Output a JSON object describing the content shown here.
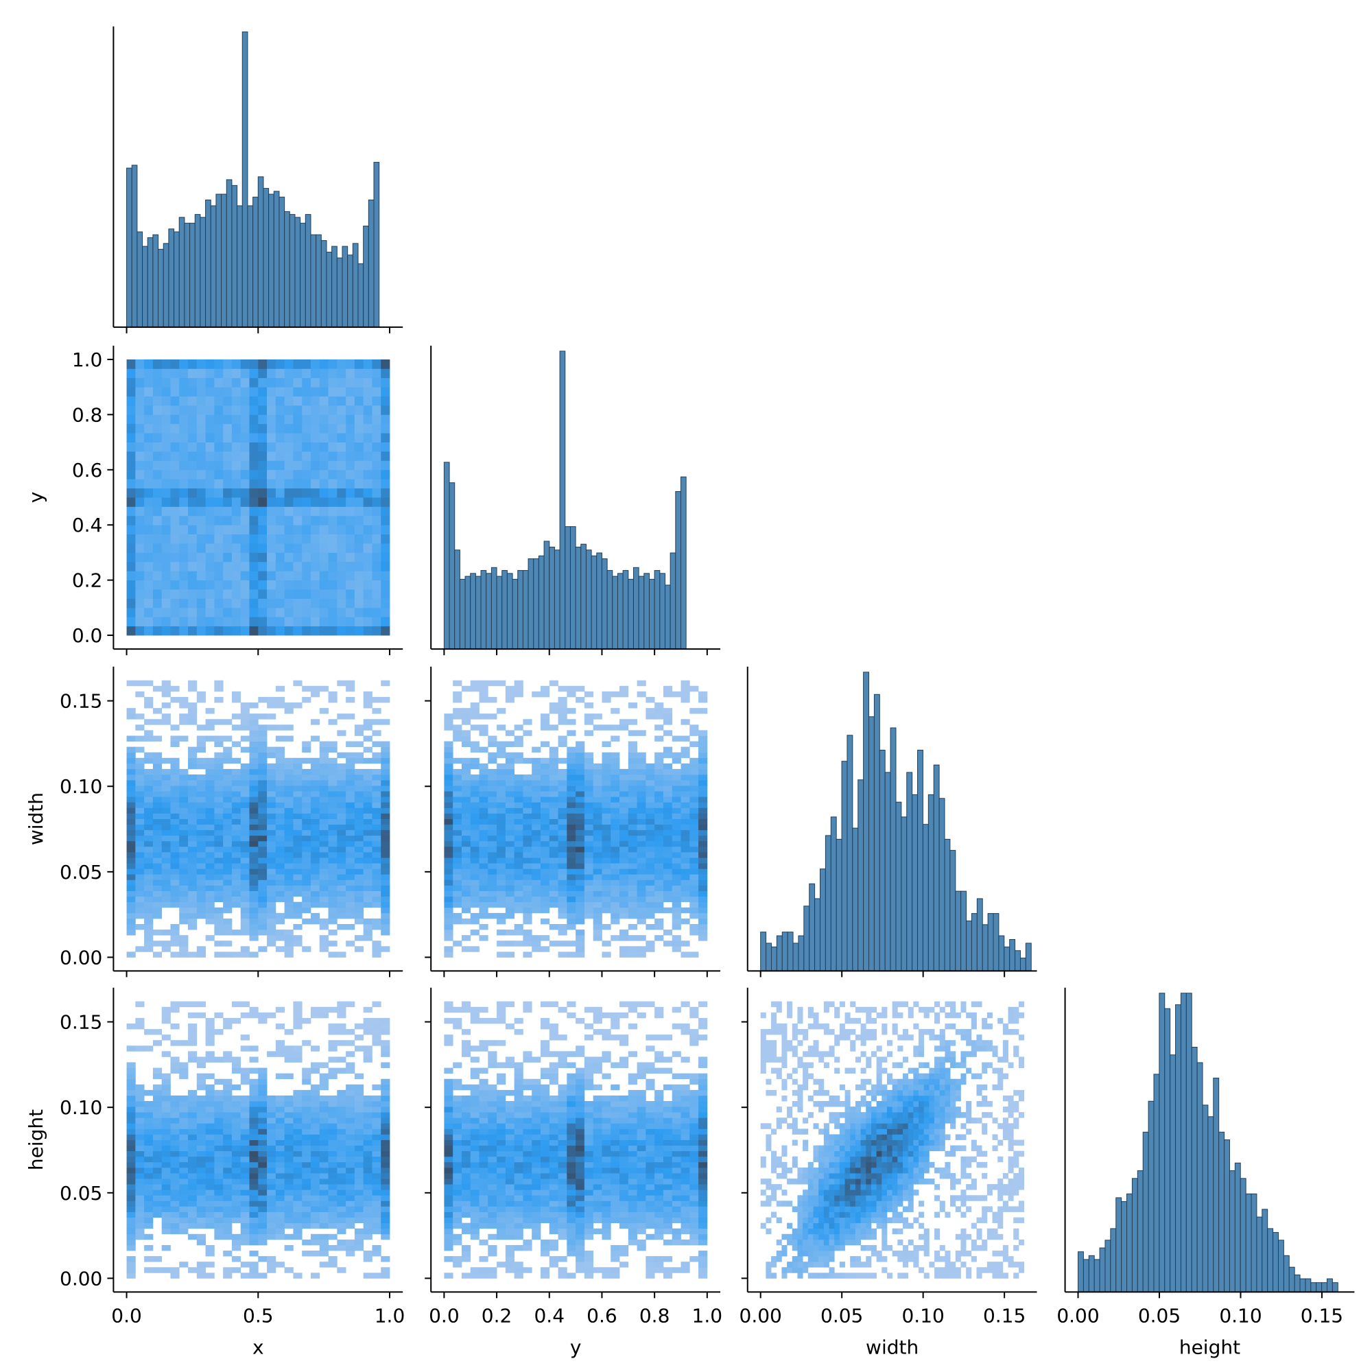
{
  "chart_data": {
    "type": "pairplot",
    "variables": [
      "x",
      "y",
      "width",
      "height"
    ],
    "corner": true,
    "diagonal": "histogram",
    "off_diagonal": "2d-histogram",
    "colors": {
      "bar_fill": "#4f87b4",
      "bar_edge": "#1f3f5a",
      "heat_low": "#a9c8ef",
      "heat_mid": "#2f9cf0",
      "heat_high": "#37506e"
    },
    "axes": {
      "x": {
        "label": "x",
        "range": [
          -0.05,
          1.05
        ],
        "ticks": [
          0.0,
          0.5,
          1.0
        ],
        "tick_labels": [
          "0.0",
          "0.5",
          "1.0"
        ]
      },
      "y": {
        "label": "y",
        "range": [
          -0.05,
          1.05
        ],
        "ticks": [
          0.0,
          0.2,
          0.4,
          0.6,
          0.8,
          1.0
        ],
        "tick_labels": [
          "0.0",
          "0.2",
          "0.4",
          "0.6",
          "0.8",
          "1.0"
        ],
        "x_tick_labels": [
          "0.0",
          "0.5",
          "1.0"
        ]
      },
      "width": {
        "label": "width",
        "range": [
          -0.008,
          0.17
        ],
        "ticks": [
          0.0,
          0.05,
          0.1,
          0.15
        ],
        "tick_labels": [
          "0.00",
          "0.05",
          "0.10",
          "0.15"
        ]
      },
      "height": {
        "label": "height",
        "range": [
          -0.008,
          0.17
        ],
        "ticks": [
          0.0,
          0.05,
          0.1,
          0.15
        ],
        "tick_labels": [
          "0.00",
          "0.05",
          "0.10",
          "0.15"
        ]
      }
    },
    "hist_x": {
      "bin_start": 0.0,
      "bin_width": 0.02,
      "counts": [
        0.53,
        0.54,
        0.31,
        0.26,
        0.29,
        0.3,
        0.25,
        0.27,
        0.32,
        0.31,
        0.36,
        0.34,
        0.34,
        0.37,
        0.36,
        0.42,
        0.4,
        0.44,
        0.44,
        0.49,
        0.47,
        0.4,
        1.0,
        0.4,
        0.43,
        0.5,
        0.46,
        0.44,
        0.45,
        0.43,
        0.38,
        0.37,
        0.36,
        0.34,
        0.37,
        0.3,
        0.3,
        0.28,
        0.24,
        0.26,
        0.22,
        0.26,
        0.23,
        0.27,
        0.2,
        0.33,
        0.42,
        0.55
      ]
    },
    "hist_y": {
      "bin_start": 0.0,
      "bin_width": 0.02,
      "counts": [
        0.62,
        0.55,
        0.32,
        0.22,
        0.23,
        0.24,
        0.23,
        0.25,
        0.24,
        0.26,
        0.23,
        0.25,
        0.24,
        0.22,
        0.25,
        0.25,
        0.29,
        0.29,
        0.3,
        0.35,
        0.33,
        0.32,
        1.0,
        0.4,
        0.4,
        0.33,
        0.34,
        0.32,
        0.3,
        0.31,
        0.29,
        0.25,
        0.23,
        0.24,
        0.25,
        0.22,
        0.26,
        0.23,
        0.24,
        0.22,
        0.25,
        0.24,
        0.2,
        0.31,
        0.52,
        0.57
      ]
    },
    "hist_width": {
      "bin_start": 0.0,
      "bin_width": 0.00333,
      "counts": [
        0.09,
        0.06,
        0.05,
        0.08,
        0.09,
        0.09,
        0.06,
        0.08,
        0.16,
        0.22,
        0.18,
        0.26,
        0.35,
        0.4,
        0.34,
        0.55,
        0.62,
        0.37,
        0.5,
        0.79,
        0.67,
        0.73,
        0.58,
        0.52,
        0.64,
        0.44,
        0.4,
        0.52,
        0.46,
        0.58,
        0.38,
        0.46,
        0.54,
        0.45,
        0.34,
        0.31,
        0.2,
        0.2,
        0.12,
        0.14,
        0.18,
        0.11,
        0.14,
        0.14,
        0.08,
        0.05,
        0.07,
        0.04,
        0.02,
        0.06
      ]
    },
    "hist_height": {
      "bin_start": 0.0,
      "bin_width": 0.00333,
      "counts": [
        0.09,
        0.07,
        0.08,
        0.07,
        0.1,
        0.12,
        0.15,
        0.23,
        0.22,
        0.24,
        0.28,
        0.3,
        0.4,
        0.48,
        0.55,
        0.76,
        0.72,
        0.6,
        0.73,
        0.76,
        0.76,
        0.62,
        0.58,
        0.47,
        0.44,
        0.54,
        0.4,
        0.38,
        0.3,
        0.32,
        0.28,
        0.24,
        0.24,
        0.18,
        0.2,
        0.15,
        0.14,
        0.12,
        0.08,
        0.05,
        0.03,
        0.02,
        0.02,
        0.01,
        0.01,
        0.01,
        0.02,
        0.01
      ]
    }
  }
}
